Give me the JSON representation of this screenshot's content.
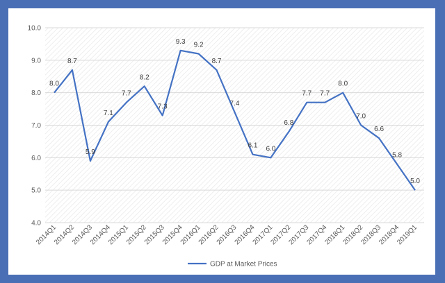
{
  "chart_data": {
    "type": "line",
    "categories": [
      "2014Q1",
      "2014Q2",
      "2014Q3",
      "2014Q4",
      "2015Q1",
      "2015Q2",
      "2015Q3",
      "2015Q4",
      "2016Q1",
      "2016Q2",
      "2016Q3",
      "2016Q4",
      "2017Q1",
      "2017Q2",
      "2017Q3",
      "2017Q4",
      "2018Q1",
      "2018Q2",
      "2018Q3",
      "2018Q4",
      "2019Q1"
    ],
    "series": [
      {
        "name": "GDP at Market Prices",
        "values": [
          8.0,
          8.7,
          5.9,
          7.1,
          7.7,
          8.2,
          7.3,
          9.3,
          9.2,
          8.7,
          7.4,
          6.1,
          6.0,
          6.8,
          7.7,
          7.7,
          8.0,
          7.0,
          6.6,
          5.8,
          5.0
        ],
        "color": "#4472c4"
      }
    ],
    "title": "",
    "xlabel": "",
    "ylabel": "",
    "ylim": [
      4.0,
      10.0
    ],
    "yticks": [
      "4.0",
      "5.0",
      "6.0",
      "7.0",
      "8.0",
      "9.0",
      "10.0"
    ],
    "grid": true,
    "legend_position": "bottom"
  },
  "colors": {
    "frame_border": "#4a6fb5",
    "line": "#4472c4",
    "grid": "#d9d9d9"
  }
}
